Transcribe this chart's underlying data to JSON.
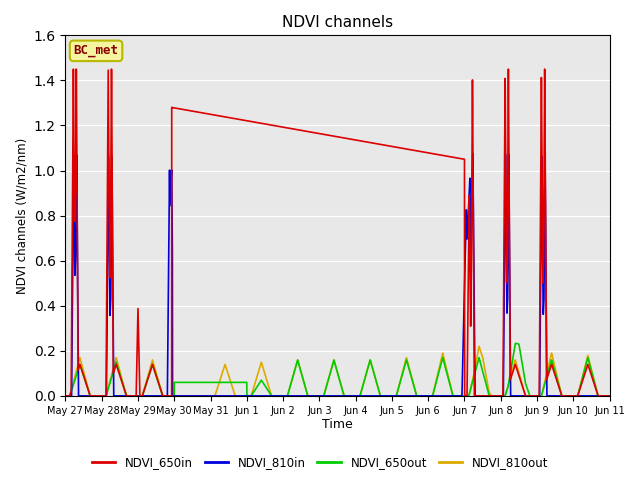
{
  "title": "NDVI channels",
  "ylabel": "NDVI channels (W/m2/nm)",
  "xlabel": "Time",
  "ylim": [
    0,
    1.6
  ],
  "bg_color": "#e8e8e8",
  "annotation_text": "BC_met",
  "annotation_color": "#8B0000",
  "annotation_bg": "#f5f5a0",
  "annotation_border": "#b8b800",
  "series": {
    "NDVI_650in": {
      "color": "#dd0000",
      "label": "NDVI_650in"
    },
    "NDVI_810in": {
      "color": "#0000dd",
      "label": "NDVI_810in"
    },
    "NDVI_650out": {
      "color": "#00cc00",
      "label": "NDVI_650out"
    },
    "NDVI_810out": {
      "color": "#ddaa00",
      "label": "NDVI_810out"
    }
  },
  "tick_labels": [
    "May 27",
    "May 28",
    "May 29",
    "May 30",
    "May 31",
    "Jun 1",
    "Jun 2",
    "Jun 3",
    "Jun 4",
    "Jun 5",
    "Jun 6",
    "Jun 7",
    "Jun 8",
    "Jun 9",
    "Jun 10",
    "Jun 11"
  ]
}
